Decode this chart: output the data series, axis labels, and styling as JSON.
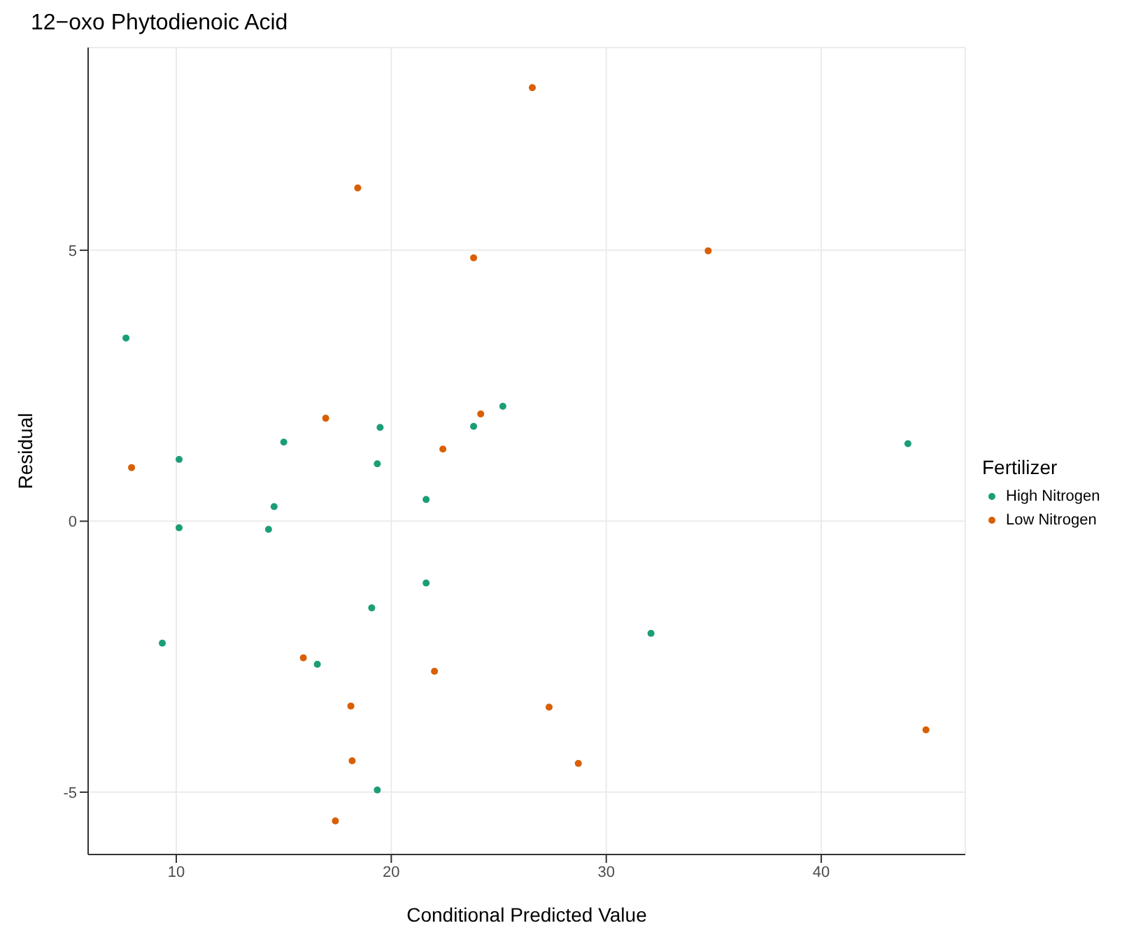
{
  "chart_data": {
    "type": "scatter",
    "title": "12−oxo Phytodienoic Acid",
    "xlabel": "Conditional Predicted Value",
    "ylabel": "Residual",
    "legend_title": "Fertilizer",
    "legend": "right",
    "grid": true,
    "marker": "circle",
    "xlim": [
      5.9,
      46.7
    ],
    "xticks": [
      10,
      20,
      30,
      40
    ],
    "ylim": [
      -6.15,
      8.74
    ],
    "yticks": [
      -5,
      0,
      5
    ],
    "series": [
      {
        "name": "High Nitrogen",
        "color": "#1b9e77",
        "x": [
          7.66,
          10.13,
          10.13,
          9.35,
          14.55,
          14.29,
          15.0,
          16.56,
          19.09,
          19.35,
          19.35,
          19.48,
          21.62,
          21.62,
          23.83,
          25.19,
          32.08,
          44.03
        ],
        "values": [
          3.38,
          1.14,
          -0.12,
          -2.25,
          0.27,
          -0.15,
          1.46,
          -2.64,
          -1.6,
          -4.96,
          1.06,
          1.73,
          0.4,
          -1.14,
          1.75,
          2.12,
          -2.07,
          1.43
        ]
      },
      {
        "name": "Low Nitrogen",
        "color": "#d95f02",
        "x": [
          7.92,
          15.91,
          16.95,
          18.44,
          18.12,
          18.18,
          17.4,
          22.01,
          22.4,
          23.83,
          24.16,
          26.56,
          27.34,
          28.7,
          34.74,
          44.87
        ],
        "values": [
          0.99,
          -2.52,
          1.9,
          6.15,
          -3.41,
          -4.42,
          -5.53,
          -2.77,
          1.33,
          4.86,
          1.98,
          8.0,
          -3.43,
          -4.47,
          4.99,
          -3.85
        ]
      }
    ]
  }
}
